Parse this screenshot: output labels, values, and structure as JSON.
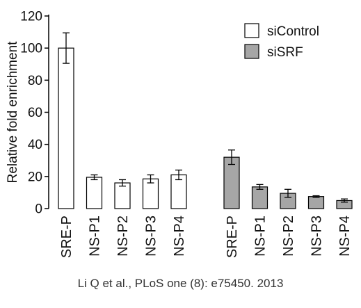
{
  "chart_data": {
    "type": "bar",
    "ylabel": "Relative fold enrichment",
    "ylim": [
      0,
      120
    ],
    "yticks": [
      0,
      20,
      40,
      60,
      80,
      100,
      120
    ],
    "legend": {
      "placement": "top-right"
    },
    "series": [
      {
        "name": "siControl",
        "color": "#ffffff",
        "categories": [
          "SRE-P",
          "NS-P1",
          "NS-P2",
          "NS-P3",
          "NS-P4"
        ],
        "values": [
          100,
          19.5,
          16,
          18.5,
          21
        ],
        "errors": [
          9.5,
          1.5,
          2,
          2.5,
          3
        ]
      },
      {
        "name": "siSRF",
        "color": "#a6a6a6",
        "categories": [
          "SRE-P",
          "NS-P1",
          "NS-P2",
          "NS-P3",
          "NS-P4"
        ],
        "values": [
          32,
          13.5,
          9.5,
          7.5,
          5
        ],
        "errors": [
          4.5,
          1.5,
          2.5,
          0.5,
          1
        ]
      }
    ],
    "grid": false
  },
  "caption": "Li Q et al., PLoS one (8): e75450. 2013"
}
